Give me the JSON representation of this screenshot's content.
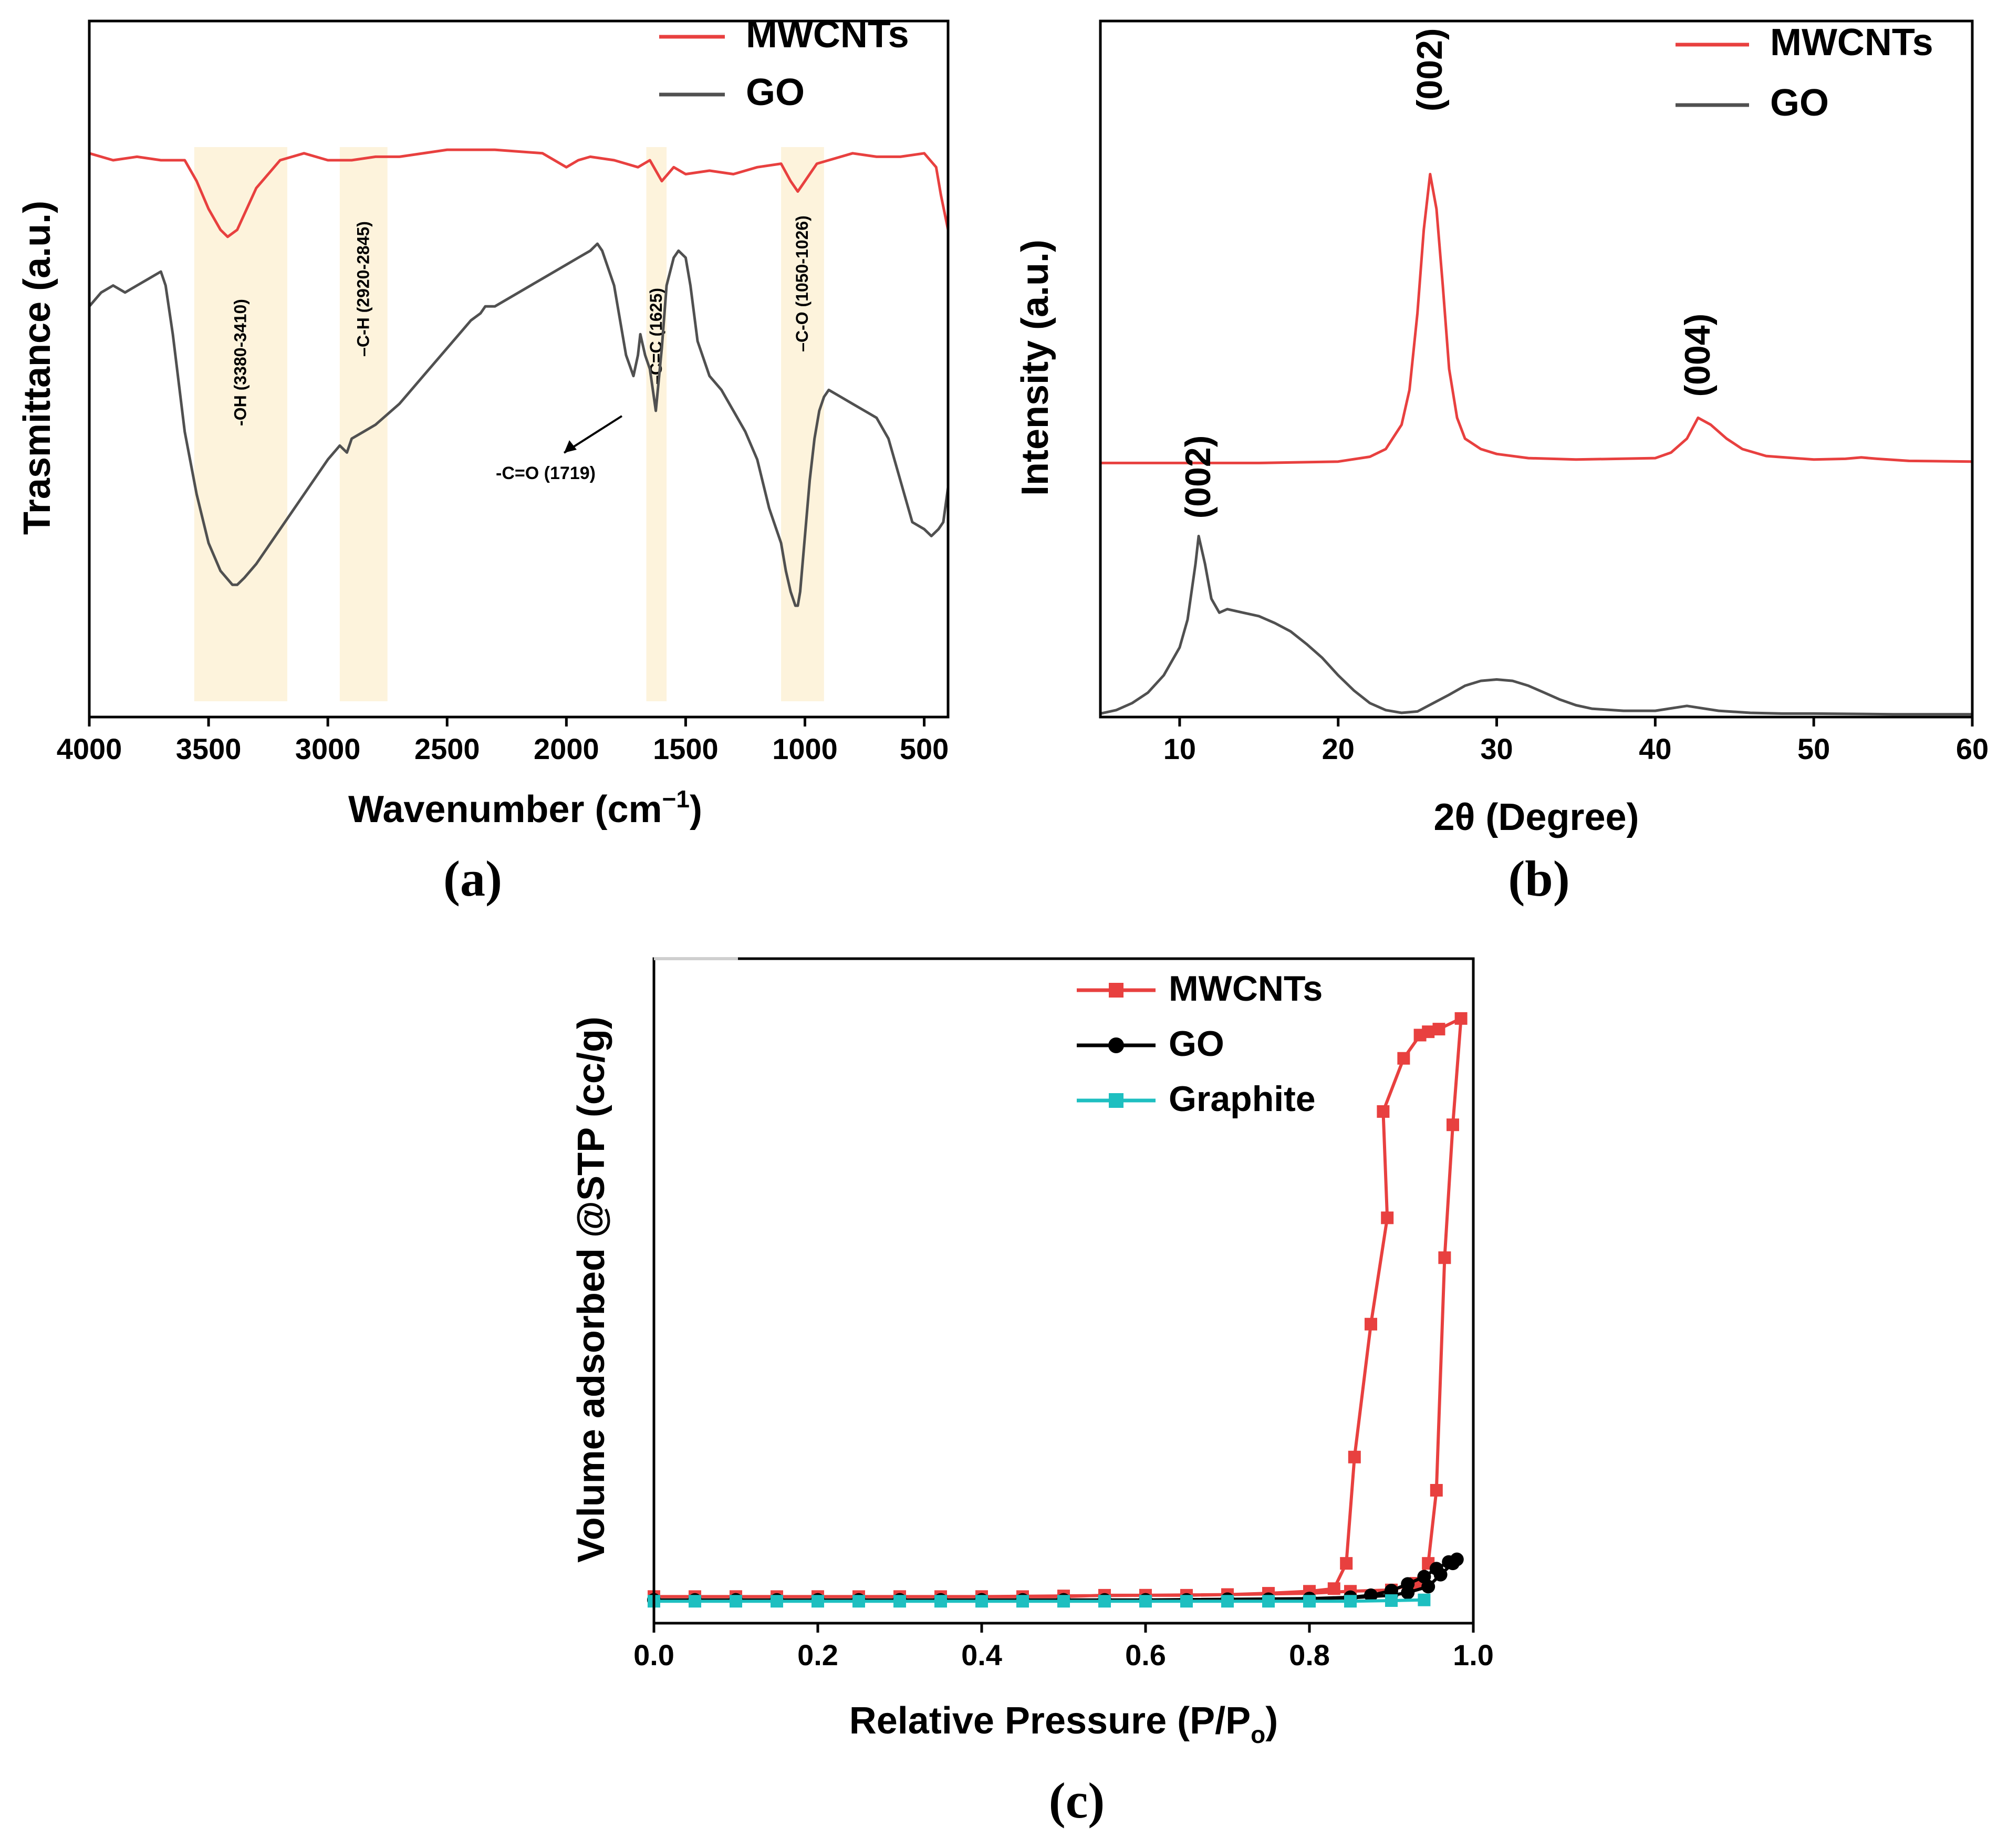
{
  "colors": {
    "mwcnts": "#e8403f",
    "go": "#505050",
    "graphite": "#1ebfc0",
    "band": "#fdf3dc",
    "axis": "#000000"
  },
  "chart_data": [
    {
      "id": "a",
      "type": "line",
      "panel_label": "(a)",
      "xlabel": "Wavenumber (cm",
      "xlabel_sup": "−1",
      "xlabel_tail": ")",
      "ylabel": "Trasmittance (a.u.)",
      "xlim": [
        4000,
        400
      ],
      "xticks": [
        "4000",
        "3500",
        "3000",
        "2500",
        "2000",
        "1500",
        "1000",
        "500"
      ],
      "xtick_values": [
        4000,
        3500,
        3000,
        2500,
        2000,
        1500,
        1000,
        500
      ],
      "ylim": [
        0,
        100
      ],
      "legend": [
        "MWCNTs",
        "GO"
      ],
      "bands": [
        {
          "from": 3560,
          "to": 3170,
          "label": "-OH (3380-3410)"
        },
        {
          "from": 2950,
          "to": 2750,
          "label": "–C-H (2920-2845)"
        },
        {
          "from": 1665,
          "to": 1580,
          "label": "–C=C (1625)"
        },
        {
          "from": 1100,
          "to": 920,
          "label": "–C-O (1050-1026)"
        }
      ],
      "annotation": {
        "label": "-C=O (1719)",
        "x": 1719,
        "y": 44
      },
      "series": [
        {
          "name": "MWCNTs",
          "x": [
            4000,
            3900,
            3800,
            3700,
            3600,
            3550,
            3500,
            3450,
            3420,
            3380,
            3300,
            3200,
            3100,
            3000,
            2900,
            2800,
            2700,
            2500,
            2300,
            2100,
            2000,
            1950,
            1900,
            1800,
            1750,
            1700,
            1650,
            1600,
            1550,
            1500,
            1400,
            1300,
            1200,
            1100,
            1060,
            1030,
            1000,
            950,
            900,
            800,
            700,
            600,
            500,
            450,
            430,
            400
          ],
          "y": [
            81,
            80,
            80.5,
            80,
            80,
            77,
            73,
            70,
            69,
            70,
            76,
            80,
            81,
            80,
            80,
            80.5,
            80.5,
            81.5,
            81.5,
            81,
            79,
            80,
            80.5,
            80,
            79.5,
            79,
            80,
            77,
            79,
            78,
            78.5,
            78,
            79,
            79.5,
            77,
            75.5,
            77,
            79.5,
            80,
            81,
            80.5,
            80.5,
            81,
            79,
            75,
            70
          ]
        },
        {
          "name": "GO",
          "x": [
            4000,
            3950,
            3900,
            3850,
            3800,
            3750,
            3700,
            3680,
            3650,
            3600,
            3550,
            3500,
            3450,
            3400,
            3380,
            3350,
            3300,
            3200,
            3100,
            3000,
            2950,
            2920,
            2900,
            2850,
            2800,
            2700,
            2600,
            2500,
            2400,
            2360,
            2340,
            2300,
            2200,
            2100,
            2000,
            1950,
            1900,
            1870,
            1850,
            1800,
            1750,
            1719,
            1700,
            1690,
            1670,
            1650,
            1625,
            1600,
            1580,
            1550,
            1530,
            1500,
            1480,
            1450,
            1400,
            1350,
            1300,
            1250,
            1200,
            1150,
            1120,
            1100,
            1080,
            1060,
            1040,
            1030,
            1020,
            1000,
            980,
            960,
            940,
            920,
            900,
            850,
            800,
            750,
            700,
            650,
            600,
            550,
            500,
            470,
            440,
            420,
            400
          ],
          "y": [
            59,
            61,
            62,
            61,
            62,
            63,
            64,
            62,
            55,
            41,
            32,
            25,
            21,
            19,
            19,
            20,
            22,
            27,
            32,
            37,
            39,
            38,
            40,
            41,
            42,
            45,
            49,
            53,
            57,
            58,
            59,
            59,
            61,
            63,
            65,
            66,
            67,
            68,
            67,
            62,
            52,
            49,
            52,
            55,
            52,
            50,
            44,
            53,
            62,
            66,
            67,
            66,
            62,
            54,
            49,
            47,
            44,
            41,
            37,
            30,
            27,
            25,
            21,
            18,
            16,
            16,
            18,
            26,
            34,
            40,
            44,
            46,
            47,
            46,
            45,
            44,
            43,
            40,
            34,
            28,
            27,
            26,
            27,
            28,
            33
          ]
        }
      ]
    },
    {
      "id": "b",
      "type": "line",
      "panel_label": "(b)",
      "xlabel": "2θ (Degree)",
      "ylabel": "Intensity (a.u.)",
      "xlim": [
        5,
        60
      ],
      "xticks": [
        "10",
        "20",
        "30",
        "40",
        "50",
        "60"
      ],
      "xtick_values": [
        10,
        20,
        30,
        40,
        50,
        60
      ],
      "ylim": [
        0,
        100
      ],
      "legend": [
        "MWCNTs",
        "GO"
      ],
      "peak_labels": [
        {
          "label": "(002)",
          "x": 25.8,
          "y": 87
        },
        {
          "label": "(004)",
          "x": 42.7,
          "y": 46
        },
        {
          "label": "(002)",
          "x": 11.2,
          "y": 28.5
        }
      ],
      "series": [
        {
          "name": "MWCNTs",
          "x": [
            5,
            15,
            20,
            22,
            23,
            24,
            24.5,
            25,
            25.4,
            25.8,
            26.2,
            26.6,
            27,
            27.5,
            28,
            29,
            30,
            32,
            35,
            40,
            41,
            42,
            42.7,
            43.5,
            44.5,
            45.5,
            47,
            50,
            52,
            53,
            54,
            56,
            60
          ],
          "y": [
            36.5,
            36.5,
            36.7,
            37.4,
            38.5,
            42,
            47,
            58,
            70,
            78,
            73,
            62,
            50,
            43,
            40,
            38.5,
            37.8,
            37.2,
            37,
            37.2,
            38,
            40,
            43,
            42,
            40,
            38.5,
            37.5,
            37,
            37.1,
            37.3,
            37.1,
            36.8,
            36.7
          ]
        },
        {
          "name": "GO",
          "x": [
            5,
            6,
            7,
            8,
            9,
            10,
            10.5,
            11,
            11.2,
            11.6,
            12,
            12.5,
            13,
            14,
            15,
            16,
            17,
            18,
            19,
            20,
            21,
            22,
            23,
            24,
            25,
            26,
            27,
            28,
            29,
            30,
            31,
            32,
            33,
            34,
            35,
            36,
            38,
            40,
            42,
            44,
            46,
            48,
            50,
            55,
            60
          ],
          "y": [
            0.5,
            1,
            2,
            3.5,
            6,
            10,
            14,
            22,
            26,
            22,
            17,
            15,
            15.5,
            15,
            14.5,
            13.5,
            12.3,
            10.5,
            8.5,
            6,
            3.8,
            2,
            1,
            0.6,
            0.8,
            2,
            3.2,
            4.5,
            5.2,
            5.4,
            5.2,
            4.5,
            3.5,
            2.5,
            1.7,
            1.2,
            0.9,
            0.9,
            1.6,
            0.9,
            0.6,
            0.5,
            0.5,
            0.4,
            0.4
          ]
        }
      ]
    },
    {
      "id": "c",
      "type": "line",
      "panel_label": "(c)",
      "xlabel": "Relative Pressure (P/P",
      "xlabel_sub": "o",
      "xlabel_tail": ")",
      "ylabel": "Volume adsorbed @STP (cc/g)",
      "xlim": [
        0,
        1.0
      ],
      "xticks": [
        "0.0",
        "0.2",
        "0.4",
        "0.6",
        "0.8",
        "1.0"
      ],
      "xtick_values": [
        0,
        0.2,
        0.4,
        0.6,
        0.8,
        1.0
      ],
      "ylim": [
        0,
        100
      ],
      "legend": [
        "MWCNTs",
        "GO",
        "Graphite"
      ],
      "series": [
        {
          "name": "MWCNTs",
          "marker": "square",
          "x": [
            0.0,
            0.05,
            0.1,
            0.15,
            0.2,
            0.25,
            0.3,
            0.35,
            0.4,
            0.45,
            0.5,
            0.55,
            0.6,
            0.65,
            0.7,
            0.75,
            0.8,
            0.83,
            0.845,
            0.855,
            0.875,
            0.895,
            0.89,
            0.915,
            0.935,
            0.945,
            0.958,
            0.985,
            0.975,
            0.965,
            0.955,
            0.945,
            0.93,
            0.9,
            0.85,
            0.8,
            0.7,
            0.6,
            0.5,
            0.4,
            0.3,
            0.2,
            0.1,
            0.0
          ],
          "y": [
            4,
            4,
            4,
            4,
            4,
            4,
            4,
            4,
            4,
            4,
            4,
            4.2,
            4.2,
            4.2,
            4.3,
            4.5,
            4.8,
            5.2,
            9,
            25,
            45,
            61,
            77,
            85,
            88.5,
            89,
            89.4,
            91,
            75,
            55,
            20,
            9,
            6,
            5,
            4.8,
            4.5,
            4.3,
            4.2,
            4.1,
            4,
            4,
            4,
            4,
            4
          ]
        },
        {
          "name": "GO",
          "marker": "circle",
          "x": [
            0.0,
            0.05,
            0.1,
            0.15,
            0.2,
            0.25,
            0.3,
            0.35,
            0.4,
            0.45,
            0.5,
            0.55,
            0.6,
            0.65,
            0.7,
            0.75,
            0.8,
            0.85,
            0.875,
            0.9,
            0.92,
            0.94,
            0.955,
            0.97,
            0.98,
            0.975,
            0.96,
            0.945,
            0.92,
            0.9,
            0.85,
            0.8,
            0.7,
            0.6,
            0.5,
            0.4,
            0.3,
            0.2,
            0.1,
            0.0
          ],
          "y": [
            3.5,
            3.5,
            3.5,
            3.5,
            3.5,
            3.5,
            3.5,
            3.5,
            3.5,
            3.5,
            3.5,
            3.5,
            3.5,
            3.5,
            3.6,
            3.6,
            3.7,
            3.9,
            4.2,
            4.9,
            5.9,
            7,
            8.2,
            9.2,
            9.6,
            9,
            7.3,
            5.5,
            4.6,
            4.2,
            3.8,
            3.7,
            3.6,
            3.5,
            3.5,
            3.5,
            3.5,
            3.5,
            3.5,
            3.5
          ]
        },
        {
          "name": "Graphite",
          "marker": "square",
          "x": [
            0.0,
            0.05,
            0.1,
            0.15,
            0.2,
            0.25,
            0.3,
            0.35,
            0.4,
            0.45,
            0.5,
            0.55,
            0.6,
            0.65,
            0.7,
            0.75,
            0.8,
            0.85,
            0.9,
            0.94
          ],
          "y": [
            3.3,
            3.3,
            3.3,
            3.3,
            3.3,
            3.3,
            3.3,
            3.3,
            3.3,
            3.3,
            3.3,
            3.3,
            3.3,
            3.3,
            3.3,
            3.3,
            3.3,
            3.3,
            3.4,
            3.5
          ]
        }
      ]
    }
  ]
}
